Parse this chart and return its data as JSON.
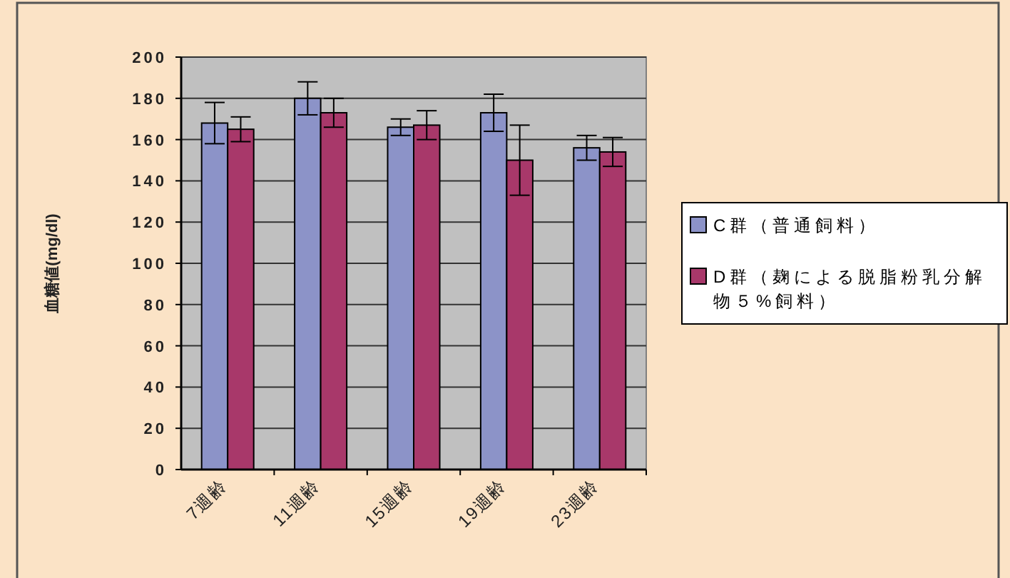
{
  "chart_data": {
    "type": "bar",
    "ylabel": "血糖値(mg/dl)",
    "categories": [
      "7週齢",
      "11週齢",
      "15週齢",
      "19週齢",
      "23週齢"
    ],
    "series": [
      {
        "name": "C群（普通飼料）",
        "color": "#8c93c8",
        "values": [
          168,
          180,
          166,
          173,
          156
        ],
        "errors": [
          10,
          8,
          4,
          9,
          6
        ]
      },
      {
        "name": "D群（麹による脱脂粉乳分解物５%飼料）",
        "color": "#a8386a",
        "values": [
          165,
          173,
          167,
          150,
          154
        ],
        "errors": [
          6,
          7,
          7,
          17,
          7
        ]
      }
    ],
    "ylim": [
      0,
      200
    ],
    "yticks": [
      0,
      20,
      40,
      60,
      80,
      100,
      120,
      140,
      160,
      180,
      200
    ],
    "grid": "y",
    "legend": "right"
  }
}
